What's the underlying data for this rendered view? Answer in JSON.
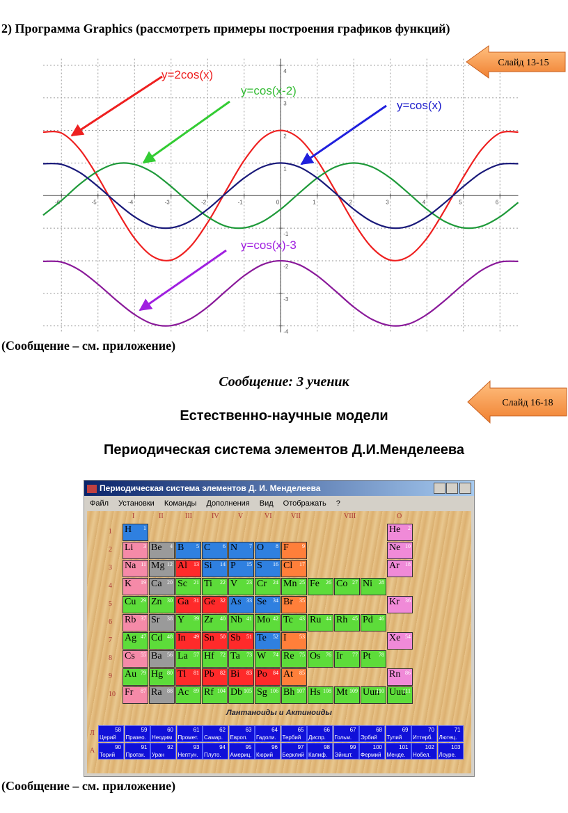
{
  "heading": "2) Программа Graphics (рассмотреть примеры построения графиков функций)",
  "slide_1": "Слайд 13-15",
  "graph": {
    "type": "line",
    "x": [
      -6.5,
      -6,
      -5.5,
      -5,
      -4.5,
      -4,
      -3.5,
      -3,
      -2.5,
      -2,
      -1.5,
      -1,
      -0.5,
      0,
      0.5,
      1,
      1.5,
      2,
      2.5,
      3,
      3.5,
      4,
      4.5,
      5,
      5.5,
      6,
      6.5
    ],
    "series": [
      {
        "name": "y=2cos(x)",
        "color": "#ee2020",
        "values": [
          1.95,
          1.92,
          1.42,
          0.57,
          -0.42,
          -1.31,
          -1.87,
          -1.98,
          -1.6,
          -0.83,
          0.14,
          1.08,
          1.76,
          2,
          1.76,
          1.08,
          0.14,
          -0.83,
          -1.6,
          -1.98,
          -1.87,
          -1.31,
          -0.42,
          0.57,
          1.42,
          1.92,
          1.95
        ]
      },
      {
        "name": "y=cos(x-2)",
        "color": "#1f9a3a",
        "values": [
          -0.6,
          -0.15,
          0.35,
          0.75,
          0.98,
          0.96,
          0.71,
          0.28,
          -0.21,
          -0.65,
          -0.94,
          -0.99,
          -0.8,
          -0.42,
          0.07,
          0.54,
          0.88,
          1,
          0.88,
          0.54,
          0.07,
          -0.42,
          -0.8,
          -0.99,
          -0.94,
          -0.65,
          -0.21
        ]
      },
      {
        "name": "y=cos(x)",
        "color": "#1a1a7a",
        "values": [
          0.98,
          0.96,
          0.71,
          0.28,
          -0.21,
          -0.65,
          -0.94,
          -0.99,
          -0.8,
          -0.42,
          0.07,
          0.54,
          0.88,
          1,
          0.88,
          0.54,
          0.07,
          -0.42,
          -0.8,
          -0.99,
          -0.94,
          -0.65,
          -0.21,
          0.28,
          0.71,
          0.96,
          0.98
        ]
      },
      {
        "name": "y=cos(x)-3",
        "color": "#8a1a9a",
        "values": [
          -2.02,
          -2.04,
          -2.29,
          -2.72,
          -3.21,
          -3.65,
          -3.94,
          -3.99,
          -3.8,
          -3.42,
          -2.93,
          -2.46,
          -2.12,
          -2,
          -2.12,
          -2.46,
          -2.93,
          -3.42,
          -3.8,
          -3.99,
          -3.94,
          -3.65,
          -3.21,
          -2.72,
          -2.29,
          -2.04,
          -2.02
        ]
      }
    ],
    "label_colors": [
      "#ee2020",
      "#33bb33",
      "#2020cc",
      "#a020e0"
    ],
    "xlim": [
      -6.5,
      6.5
    ],
    "ylim": [
      -4.2,
      4.2
    ],
    "xticks": [
      -6,
      -5,
      -4,
      -3,
      -2,
      -1,
      0,
      1,
      2,
      3,
      4,
      5,
      6
    ],
    "yticks": [
      -4,
      -3,
      -2,
      -1,
      1,
      2,
      3,
      4
    ],
    "grid": true
  },
  "caption_1": "(Сообщение – см. приложение)",
  "message": "Сообщение: 3 ученик",
  "slide_2": "Слайд 16-18",
  "subheading_1": "Естественно-научные модели",
  "subheading_2": "Периодическая система элементов Д.И.Менделеева",
  "periodic_table": {
    "window_title": "Периодическая система элементов Д. И. Менделеева",
    "menu": [
      "Файл",
      "Установки",
      "Команды",
      "Дополнения",
      "Вид",
      "Отображать",
      "?"
    ],
    "groups": [
      "I",
      "II",
      "III",
      "IV",
      "V",
      "VI",
      "VII",
      "VIII",
      "O"
    ],
    "palette": {
      "p": "#f58aa8",
      "g": "#9a9a9a",
      "b": "#2f80e0",
      "o": "#ff7f3a",
      "r": "#ff2a2a",
      "gr": "#5ddc3a",
      "n": "#f08ad8"
    },
    "rows": [
      {
        "label": 1,
        "cells": [
          {
            "symbol": "H",
            "number": 1,
            "kind": "b"
          },
          null,
          null,
          null,
          null,
          null,
          null,
          null,
          null,
          null,
          {
            "symbol": "He",
            "number": 2,
            "kind": "n"
          }
        ]
      },
      {
        "label": 2,
        "cells": [
          {
            "symbol": "Li",
            "number": 3,
            "kind": "p"
          },
          {
            "symbol": "Be",
            "number": 4,
            "kind": "g"
          },
          {
            "symbol": "B",
            "number": 5,
            "kind": "b"
          },
          {
            "symbol": "C",
            "number": 6,
            "kind": "b"
          },
          {
            "symbol": "N",
            "number": 7,
            "kind": "b"
          },
          {
            "symbol": "O",
            "number": 8,
            "kind": "b"
          },
          {
            "symbol": "F",
            "number": 9,
            "kind": "o"
          },
          null,
          null,
          null,
          {
            "symbol": "Ne",
            "number": 10,
            "kind": "n"
          }
        ]
      },
      {
        "label": 3,
        "cells": [
          {
            "symbol": "Na",
            "number": 11,
            "kind": "p"
          },
          {
            "symbol": "Mg",
            "number": 12,
            "kind": "g"
          },
          {
            "symbol": "Al",
            "number": 13,
            "kind": "r"
          },
          {
            "symbol": "Si",
            "number": 14,
            "kind": "b"
          },
          {
            "symbol": "P",
            "number": 15,
            "kind": "b"
          },
          {
            "symbol": "S",
            "number": 16,
            "kind": "b"
          },
          {
            "symbol": "Cl",
            "number": 17,
            "kind": "o"
          },
          null,
          null,
          null,
          {
            "symbol": "Ar",
            "number": 18,
            "kind": "n"
          }
        ]
      },
      {
        "label": 4,
        "cells": [
          {
            "symbol": "K",
            "number": 19,
            "kind": "p"
          },
          {
            "symbol": "Ca",
            "number": 20,
            "kind": "g"
          },
          {
            "symbol": "Sc",
            "number": 21,
            "kind": "gr"
          },
          {
            "symbol": "Ti",
            "number": 22,
            "kind": "gr"
          },
          {
            "symbol": "V",
            "number": 23,
            "kind": "gr"
          },
          {
            "symbol": "Cr",
            "number": 24,
            "kind": "gr"
          },
          {
            "symbol": "Mn",
            "number": 25,
            "kind": "gr"
          },
          {
            "symbol": "Fe",
            "number": 26,
            "kind": "gr"
          },
          {
            "symbol": "Co",
            "number": 27,
            "kind": "gr"
          },
          {
            "symbol": "Ni",
            "number": 28,
            "kind": "gr"
          },
          null
        ]
      },
      {
        "label": 5,
        "cells": [
          {
            "symbol": "Cu",
            "number": 29,
            "kind": "gr"
          },
          {
            "symbol": "Zn",
            "number": 30,
            "kind": "gr"
          },
          {
            "symbol": "Ga",
            "number": 31,
            "kind": "r"
          },
          {
            "symbol": "Ge",
            "number": 32,
            "kind": "r"
          },
          {
            "symbol": "As",
            "number": 33,
            "kind": "b"
          },
          {
            "symbol": "Se",
            "number": 34,
            "kind": "b"
          },
          {
            "symbol": "Br",
            "number": 35,
            "kind": "o"
          },
          null,
          null,
          null,
          {
            "symbol": "Kr",
            "number": 36,
            "kind": "n"
          }
        ]
      },
      {
        "label": 6,
        "cells": [
          {
            "symbol": "Rb",
            "number": 37,
            "kind": "p"
          },
          {
            "symbol": "Sr",
            "number": 38,
            "kind": "g"
          },
          {
            "symbol": "Y",
            "number": 39,
            "kind": "gr"
          },
          {
            "symbol": "Zr",
            "number": 40,
            "kind": "gr"
          },
          {
            "symbol": "Nb",
            "number": 41,
            "kind": "gr"
          },
          {
            "symbol": "Mo",
            "number": 42,
            "kind": "gr"
          },
          {
            "symbol": "Tc",
            "number": 43,
            "kind": "gr"
          },
          {
            "symbol": "Ru",
            "number": 44,
            "kind": "gr"
          },
          {
            "symbol": "Rh",
            "number": 45,
            "kind": "gr"
          },
          {
            "symbol": "Pd",
            "number": 46,
            "kind": "gr"
          },
          null
        ]
      },
      {
        "label": 7,
        "cells": [
          {
            "symbol": "Ag",
            "number": 47,
            "kind": "gr"
          },
          {
            "symbol": "Cd",
            "number": 48,
            "kind": "gr"
          },
          {
            "symbol": "In",
            "number": 49,
            "kind": "r"
          },
          {
            "symbol": "Sn",
            "number": 50,
            "kind": "r"
          },
          {
            "symbol": "Sb",
            "number": 51,
            "kind": "r"
          },
          {
            "symbol": "Te",
            "number": 52,
            "kind": "b"
          },
          {
            "symbol": "I",
            "number": 53,
            "kind": "o"
          },
          null,
          null,
          null,
          {
            "symbol": "Xe",
            "number": 54,
            "kind": "n"
          }
        ]
      },
      {
        "label": 8,
        "cells": [
          {
            "symbol": "Cs",
            "number": 55,
            "kind": "p"
          },
          {
            "symbol": "Ba",
            "number": 56,
            "kind": "g"
          },
          {
            "symbol": "La",
            "number": 57,
            "kind": "gr"
          },
          {
            "symbol": "Hf",
            "number": 72,
            "kind": "gr"
          },
          {
            "symbol": "Ta",
            "number": 73,
            "kind": "gr"
          },
          {
            "symbol": "W",
            "number": 74,
            "kind": "gr"
          },
          {
            "symbol": "Re",
            "number": 75,
            "kind": "gr"
          },
          {
            "symbol": "Os",
            "number": 76,
            "kind": "gr"
          },
          {
            "symbol": "Ir",
            "number": 77,
            "kind": "gr"
          },
          {
            "symbol": "Pt",
            "number": 78,
            "kind": "gr"
          },
          null
        ]
      },
      {
        "label": 9,
        "cells": [
          {
            "symbol": "Au",
            "number": 79,
            "kind": "gr"
          },
          {
            "symbol": "Hg",
            "number": 80,
            "kind": "gr"
          },
          {
            "symbol": "Tl",
            "number": 81,
            "kind": "r"
          },
          {
            "symbol": "Pb",
            "number": 82,
            "kind": "r"
          },
          {
            "symbol": "Bi",
            "number": 83,
            "kind": "r"
          },
          {
            "symbol": "Po",
            "number": 84,
            "kind": "r"
          },
          {
            "symbol": "At",
            "number": 85,
            "kind": "o"
          },
          null,
          null,
          null,
          {
            "symbol": "Rn",
            "number": 86,
            "kind": "n"
          }
        ]
      },
      {
        "label": 10,
        "cells": [
          {
            "symbol": "Fr",
            "number": 87,
            "kind": "p"
          },
          {
            "symbol": "Ra",
            "number": 88,
            "kind": "g"
          },
          {
            "symbol": "Ac",
            "number": 89,
            "kind": "gr"
          },
          {
            "symbol": "Rf",
            "number": 104,
            "kind": "gr"
          },
          {
            "symbol": "Db",
            "number": 105,
            "kind": "gr"
          },
          {
            "symbol": "Sg",
            "number": 106,
            "kind": "gr"
          },
          {
            "symbol": "Bh",
            "number": 107,
            "kind": "gr"
          },
          {
            "symbol": "Hs",
            "number": 108,
            "kind": "gr"
          },
          {
            "symbol": "Mt",
            "number": 109,
            "kind": "gr"
          },
          {
            "symbol": "Uun",
            "number": 110,
            "kind": "gr"
          },
          {
            "symbol": "Uuu",
            "number": 111,
            "kind": "gr"
          }
        ]
      }
    ],
    "series_title": "Лантаноиды и Актиноиды",
    "series_rows": [
      {
        "label": "Л",
        "numbers": [
          58,
          59,
          60,
          61,
          62,
          63,
          64,
          65,
          66,
          67,
          68,
          69,
          70,
          71
        ],
        "names": [
          "Церий",
          "Празео.",
          "Неодим",
          "Промет.",
          "Самар.",
          "Европ.",
          "Гадоли.",
          "Тербий",
          "Диспр.",
          "Гольм.",
          "Эрбий",
          "Тулий",
          "Иттерб.",
          "Лютец."
        ]
      },
      {
        "label": "А",
        "numbers": [
          90,
          91,
          92,
          93,
          94,
          95,
          96,
          97,
          98,
          99,
          100,
          101,
          102,
          103
        ],
        "names": [
          "Торий",
          "Протак.",
          "Уран",
          "Нептун.",
          "Плуто.",
          "Америц.",
          "Кюрий",
          "Берклий",
          "Калиф.",
          "Эйншт.",
          "Фермий",
          "Менде.",
          "Нобел.",
          "Лоуре."
        ]
      }
    ]
  },
  "caption_2": "(Сообщение – см. приложение)"
}
